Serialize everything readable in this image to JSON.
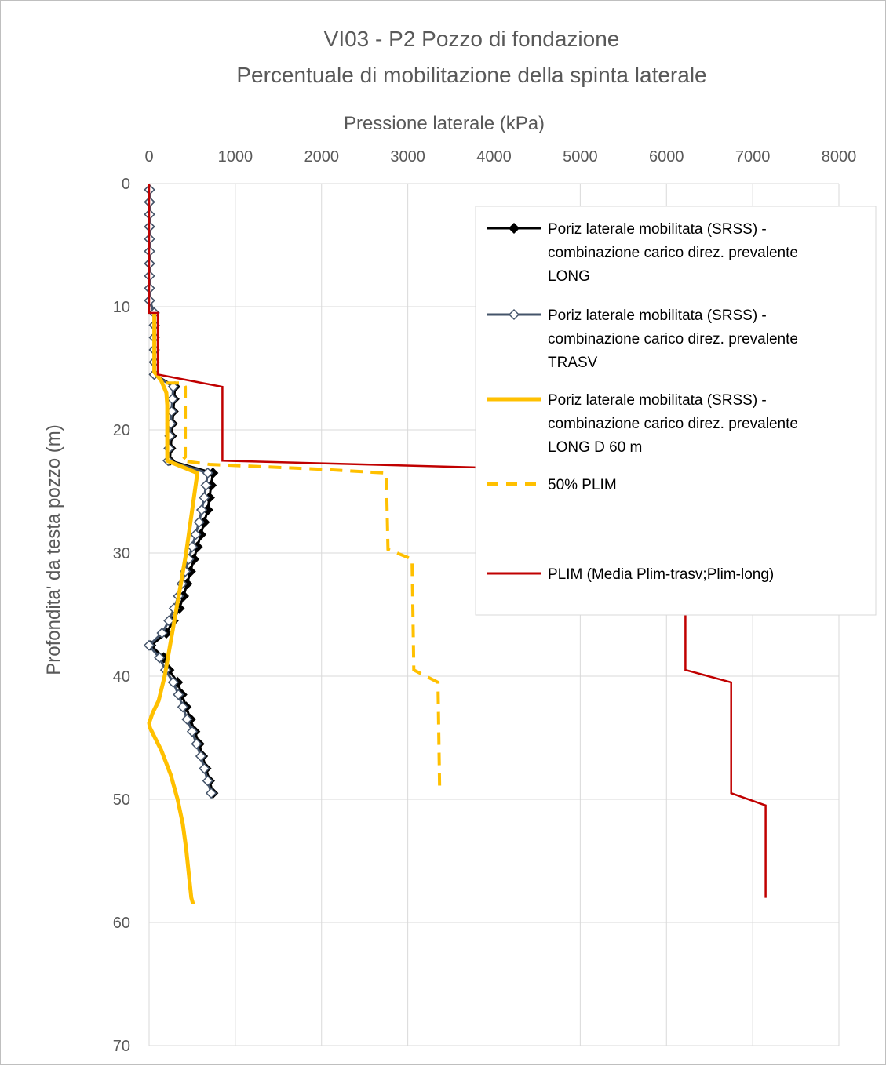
{
  "chart_data": {
    "type": "line",
    "title": "VI03 - P2 Pozzo di fondazione",
    "subtitle": "Percentuale di mobilitazione della spinta laterale",
    "xlabel": "Pressione laterale (kPa)",
    "ylabel": "Profondita' da testa pozzo (m)",
    "xlim": [
      0,
      8000
    ],
    "ylim": [
      0,
      70
    ],
    "x_ticks": [
      "0",
      "1000",
      "2000",
      "3000",
      "4000",
      "5000",
      "6000",
      "7000",
      "8000"
    ],
    "y_ticks": [
      "0",
      "10",
      "20",
      "30",
      "40",
      "50",
      "60",
      "70"
    ],
    "y_inverted": true,
    "x_axis_position": "top",
    "grid": true,
    "legend": {
      "placement": "top-right",
      "entries": [
        [
          "Poriz laterale mobilitata (SRSS) -",
          "combinazione carico direz. prevalente",
          "LONG"
        ],
        [
          "Poriz laterale mobilitata (SRSS) -",
          "combinazione carico direz. prevalente",
          "TRASV"
        ],
        [
          "Poriz laterale mobilitata (SRSS) -",
          "combinazione carico direz. prevalente",
          "LONG D 60 m"
        ],
        [
          "50% PLIM"
        ],
        [],
        [
          "PLIM (Media Plim-trasv;Plim-long)"
        ]
      ]
    },
    "series": [
      {
        "name": "Poriz laterale mobilitata (SRSS) - combinazione carico direz. prevalente LONG",
        "color": "#000000",
        "style": "line-marker-diamond-filled",
        "points": [
          [
            5,
            0.5
          ],
          [
            5,
            1.5
          ],
          [
            5,
            2.5
          ],
          [
            5,
            3.5
          ],
          [
            5,
            4.5
          ],
          [
            5,
            5.5
          ],
          [
            5,
            6.5
          ],
          [
            5,
            7.5
          ],
          [
            5,
            8.5
          ],
          [
            5,
            9.5
          ],
          [
            60,
            10.5
          ],
          [
            60,
            11.5
          ],
          [
            60,
            12.5
          ],
          [
            60,
            13.5
          ],
          [
            60,
            14.5
          ],
          [
            60,
            15.5
          ],
          [
            300,
            16.5
          ],
          [
            290,
            17.5
          ],
          [
            280,
            18.5
          ],
          [
            270,
            19.5
          ],
          [
            260,
            20.5
          ],
          [
            250,
            21.5
          ],
          [
            240,
            22.5
          ],
          [
            740,
            23.5
          ],
          [
            720,
            24.5
          ],
          [
            700,
            25.5
          ],
          [
            680,
            26.5
          ],
          [
            640,
            27.5
          ],
          [
            600,
            28.5
          ],
          [
            560,
            29.5
          ],
          [
            520,
            30.5
          ],
          [
            480,
            31.5
          ],
          [
            440,
            32.5
          ],
          [
            400,
            33.5
          ],
          [
            350,
            34.5
          ],
          [
            280,
            35.5
          ],
          [
            200,
            36.5
          ],
          [
            20,
            37.5
          ],
          [
            170,
            38.5
          ],
          [
            230,
            39.5
          ],
          [
            330,
            40.5
          ],
          [
            380,
            41.5
          ],
          [
            430,
            42.5
          ],
          [
            480,
            43.5
          ],
          [
            530,
            44.5
          ],
          [
            580,
            45.5
          ],
          [
            620,
            46.5
          ],
          [
            660,
            47.5
          ],
          [
            700,
            48.5
          ],
          [
            740,
            49.5
          ]
        ]
      },
      {
        "name": "Poriz laterale mobilitata (SRSS) - combinazione carico direz. prevalente TRASV",
        "color": "#44546a",
        "style": "line-marker-diamond-hollow",
        "points": [
          [
            5,
            0.5
          ],
          [
            5,
            1.5
          ],
          [
            5,
            2.5
          ],
          [
            5,
            3.5
          ],
          [
            5,
            4.5
          ],
          [
            5,
            5.5
          ],
          [
            5,
            6.5
          ],
          [
            5,
            7.5
          ],
          [
            5,
            8.5
          ],
          [
            5,
            9.5
          ],
          [
            60,
            10.5
          ],
          [
            60,
            11.5
          ],
          [
            60,
            12.5
          ],
          [
            60,
            13.5
          ],
          [
            60,
            14.5
          ],
          [
            60,
            15.5
          ],
          [
            280,
            16.5
          ],
          [
            270,
            17.5
          ],
          [
            260,
            18.5
          ],
          [
            250,
            19.5
          ],
          [
            240,
            20.5
          ],
          [
            230,
            21.5
          ],
          [
            220,
            22.5
          ],
          [
            680,
            23.5
          ],
          [
            660,
            24.5
          ],
          [
            640,
            25.5
          ],
          [
            610,
            26.5
          ],
          [
            580,
            27.5
          ],
          [
            540,
            28.5
          ],
          [
            500,
            29.5
          ],
          [
            460,
            30.5
          ],
          [
            420,
            31.5
          ],
          [
            380,
            32.5
          ],
          [
            340,
            33.5
          ],
          [
            290,
            34.5
          ],
          [
            230,
            35.5
          ],
          [
            150,
            36.5
          ],
          [
            0,
            37.5
          ],
          [
            120,
            38.5
          ],
          [
            190,
            39.5
          ],
          [
            280,
            40.5
          ],
          [
            340,
            41.5
          ],
          [
            390,
            42.5
          ],
          [
            440,
            43.5
          ],
          [
            500,
            44.5
          ],
          [
            550,
            45.5
          ],
          [
            600,
            46.5
          ],
          [
            640,
            47.5
          ],
          [
            680,
            48.5
          ],
          [
            720,
            49.5
          ]
        ]
      },
      {
        "name": "Poriz laterale mobilitata (SRSS) - combinazione carico direz. prevalente LONG D 60 m",
        "color": "#ffc000",
        "style": "line-thick",
        "points": [
          [
            60,
            10.5
          ],
          [
            60,
            12
          ],
          [
            60,
            14
          ],
          [
            60,
            15.3
          ],
          [
            140,
            16
          ],
          [
            200,
            17
          ],
          [
            210,
            18
          ],
          [
            210,
            20
          ],
          [
            210,
            22
          ],
          [
            210,
            22.5
          ],
          [
            560,
            23.5
          ],
          [
            510,
            26
          ],
          [
            470,
            28
          ],
          [
            430,
            30
          ],
          [
            380,
            32
          ],
          [
            330,
            34
          ],
          [
            280,
            36
          ],
          [
            230,
            38
          ],
          [
            180,
            40
          ],
          [
            110,
            42
          ],
          [
            40,
            43
          ],
          [
            0,
            43.8
          ],
          [
            10,
            44.2
          ],
          [
            140,
            46
          ],
          [
            250,
            48
          ],
          [
            330,
            50
          ],
          [
            390,
            52
          ],
          [
            430,
            54
          ],
          [
            460,
            56
          ],
          [
            490,
            58
          ],
          [
            510,
            58.5
          ]
        ]
      },
      {
        "name": "50% PLIM",
        "color": "#ffc000",
        "style": "dashed",
        "points": [
          [
            200,
            16.2
          ],
          [
            400,
            16.2
          ],
          [
            420,
            16.5
          ],
          [
            420,
            22.2
          ],
          [
            380,
            22.5
          ],
          [
            700,
            22.8
          ],
          [
            2000,
            23.2
          ],
          [
            2750,
            23.5
          ],
          [
            2770,
            29.7
          ],
          [
            3050,
            30.5
          ],
          [
            3070,
            39.5
          ],
          [
            3350,
            40.5
          ],
          [
            3370,
            49.5
          ]
        ]
      },
      {
        "name": "PLIM (Media Plim-trasv;Plim-long)",
        "color": "#c00000",
        "style": "solid",
        "points": [
          [
            0,
            0
          ],
          [
            0,
            10.5
          ],
          [
            100,
            10.5
          ],
          [
            100,
            15.5
          ],
          [
            850,
            16.5
          ],
          [
            850,
            22.5
          ],
          [
            4600,
            23.2
          ],
          [
            6220,
            23.3
          ],
          [
            6220,
            39.5
          ],
          [
            6750,
            40.5
          ],
          [
            6750,
            49.5
          ],
          [
            7150,
            50.5
          ],
          [
            7150,
            58
          ]
        ]
      }
    ]
  }
}
